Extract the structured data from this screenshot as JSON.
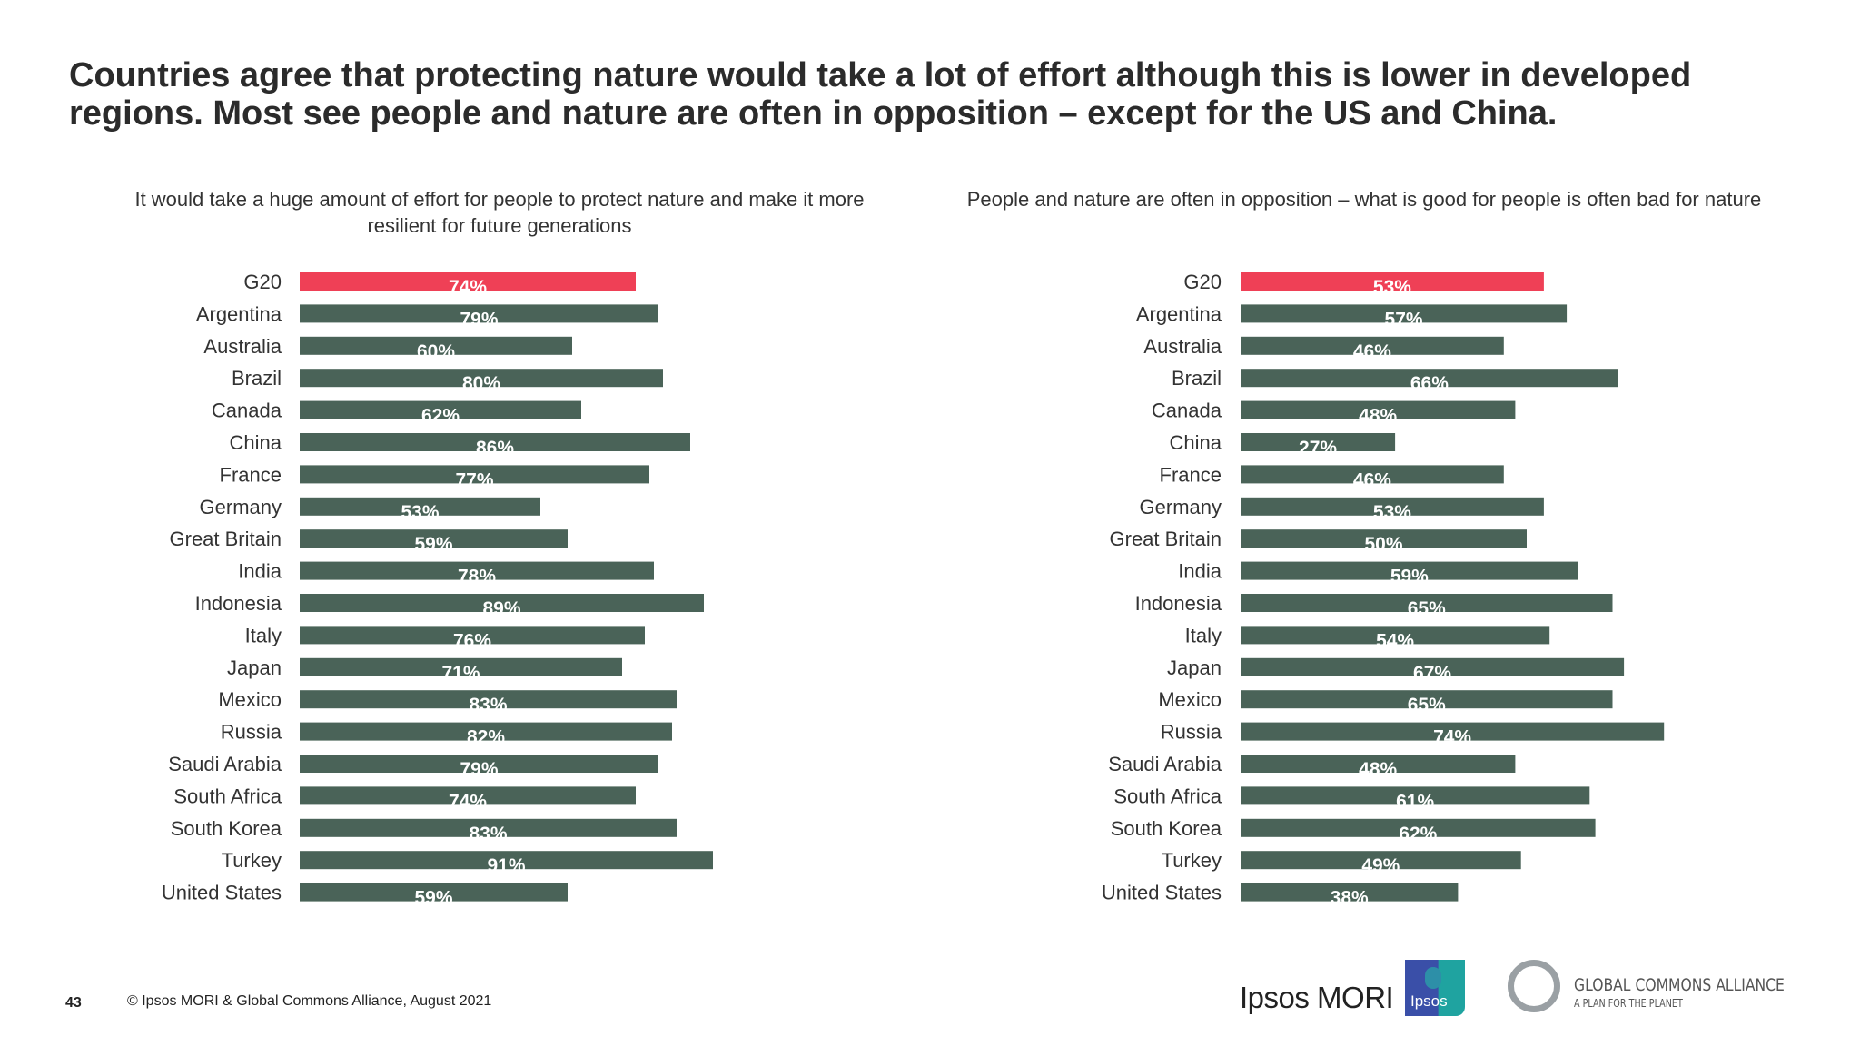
{
  "title": "Countries agree that protecting nature would take a lot of effort although this is lower in developed regions. Most see people and nature are often in opposition – except for the US and China.",
  "colors": {
    "highlight": "#ef4056",
    "bar": "#4a6358",
    "value_text": "#ffffff"
  },
  "chart_data": [
    {
      "type": "bar",
      "orientation": "horizontal",
      "title": "It would take a huge amount of effort for people to protect nature and make it more resilient for future generations",
      "categories": [
        "G20",
        "Argentina",
        "Australia",
        "Brazil",
        "Canada",
        "China",
        "France",
        "Germany",
        "Great Britain",
        "India",
        "Indonesia",
        "Italy",
        "Japan",
        "Mexico",
        "Russia",
        "Saudi Arabia",
        "South Africa",
        "South Korea",
        "Turkey",
        "United States"
      ],
      "values": [
        74,
        79,
        60,
        80,
        62,
        86,
        77,
        53,
        59,
        78,
        89,
        76,
        71,
        83,
        82,
        79,
        74,
        83,
        91,
        59
      ],
      "value_labels": [
        "74%",
        "79%",
        "60%",
        "80%",
        "62%",
        "86%",
        "77%",
        "53%",
        "59%",
        "78%",
        "89%",
        "76%",
        "71%",
        "83%",
        "82%",
        "79%",
        "74%",
        "83%",
        "91%",
        "59%"
      ],
      "highlight": "G20",
      "grid": false
    },
    {
      "type": "bar",
      "orientation": "horizontal",
      "title": "People and nature are often in opposition – what is good for people is often bad for nature",
      "categories": [
        "G20",
        "Argentina",
        "Australia",
        "Brazil",
        "Canada",
        "China",
        "France",
        "Germany",
        "Great Britain",
        "India",
        "Indonesia",
        "Italy",
        "Japan",
        "Mexico",
        "Russia",
        "Saudi Arabia",
        "South Africa",
        "South Korea",
        "Turkey",
        "United States"
      ],
      "values": [
        53,
        57,
        46,
        66,
        48,
        27,
        46,
        53,
        50,
        59,
        65,
        54,
        67,
        65,
        74,
        48,
        61,
        62,
        49,
        38
      ],
      "value_labels": [
        "53%",
        "57%",
        "46%",
        "66%",
        "48%",
        "27%",
        "46%",
        "53%",
        "50%",
        "59%",
        "65%",
        "54%",
        "67%",
        "65%",
        "74%",
        "48%",
        "61%",
        "62%",
        "49%",
        "38%"
      ],
      "highlight": "G20",
      "grid": false
    }
  ],
  "footer": {
    "page_number": "43",
    "copyright": "© Ipsos MORI & Global Commons Alliance, August 2021",
    "logos": {
      "ipsos_mori": "Ipsos MORI",
      "ipsos": "Ipsos",
      "gca_name": "GLOBAL COMMONS ALLIANCE",
      "gca_tagline": "A PLAN FOR THE PLANET"
    }
  }
}
